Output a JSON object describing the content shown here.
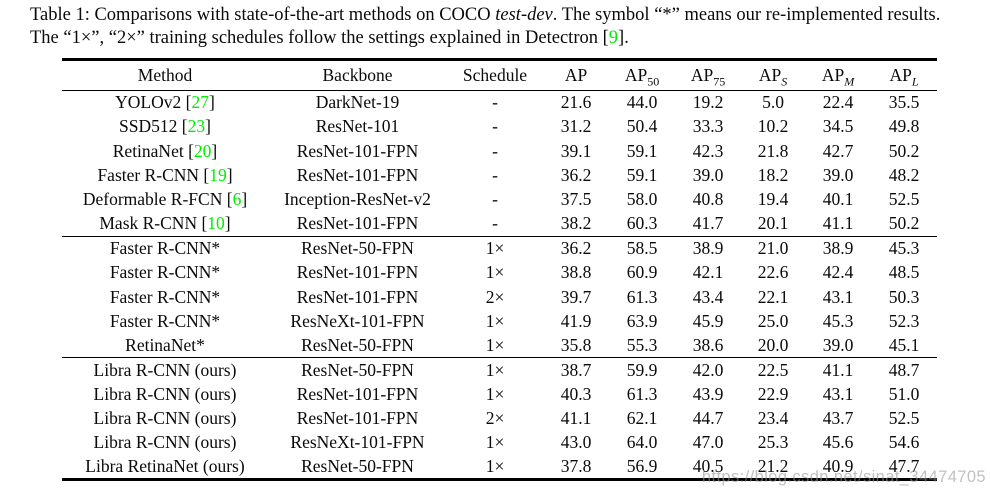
{
  "caption": {
    "line1_before_italic": "Table 1: Comparisons with state-of-the-art methods on COCO ",
    "line1_italic": "test-dev",
    "line1_after_italic": ". The symbol “*” means our re-implemented results.",
    "line2_before_ref": "The “1×”, “2×” training schedules follow the settings explained in Detectron [",
    "line2_ref": "9",
    "line2_after_ref": "]."
  },
  "table": {
    "headers": [
      {
        "text": "Method"
      },
      {
        "text": "Backbone"
      },
      {
        "text": "Schedule"
      },
      {
        "text": "AP"
      },
      {
        "text": "AP",
        "sub": "50"
      },
      {
        "text": "AP",
        "sub": "75"
      },
      {
        "text": "AP",
        "sub": "S",
        "sub_italic": true
      },
      {
        "text": "AP",
        "sub": "M",
        "sub_italic": true
      },
      {
        "text": "AP",
        "sub": "L",
        "sub_italic": true
      }
    ],
    "groups": [
      {
        "rows": [
          {
            "method": "YOLOv2",
            "ref": "27",
            "backbone": "DarkNet-19",
            "schedule": "-",
            "values": [
              "21.6",
              "44.0",
              "19.2",
              "5.0",
              "22.4",
              "35.5"
            ]
          },
          {
            "method": "SSD512",
            "ref": "23",
            "backbone": "ResNet-101",
            "schedule": "-",
            "values": [
              "31.2",
              "50.4",
              "33.3",
              "10.2",
              "34.5",
              "49.8"
            ]
          },
          {
            "method": "RetinaNet",
            "ref": "20",
            "backbone": "ResNet-101-FPN",
            "schedule": "-",
            "values": [
              "39.1",
              "59.1",
              "42.3",
              "21.8",
              "42.7",
              "50.2"
            ]
          },
          {
            "method": "Faster R-CNN",
            "ref": "19",
            "backbone": "ResNet-101-FPN",
            "schedule": "-",
            "values": [
              "36.2",
              "59.1",
              "39.0",
              "18.2",
              "39.0",
              "48.2"
            ]
          },
          {
            "method": "Deformable R-FCN",
            "ref": "6",
            "backbone": "Inception-ResNet-v2",
            "schedule": "-",
            "values": [
              "37.5",
              "58.0",
              "40.8",
              "19.4",
              "40.1",
              "52.5"
            ]
          },
          {
            "method": "Mask R-CNN",
            "ref": "10",
            "backbone": "ResNet-101-FPN",
            "schedule": "-",
            "values": [
              "38.2",
              "60.3",
              "41.7",
              "20.1",
              "41.1",
              "50.2"
            ]
          }
        ]
      },
      {
        "rows": [
          {
            "method": "Faster R-CNN*",
            "backbone": "ResNet-50-FPN",
            "schedule": "1×",
            "values": [
              "36.2",
              "58.5",
              "38.9",
              "21.0",
              "38.9",
              "45.3"
            ]
          },
          {
            "method": "Faster R-CNN*",
            "backbone": "ResNet-101-FPN",
            "schedule": "1×",
            "values": [
              "38.8",
              "60.9",
              "42.1",
              "22.6",
              "42.4",
              "48.5"
            ]
          },
          {
            "method": "Faster R-CNN*",
            "backbone": "ResNet-101-FPN",
            "schedule": "2×",
            "values": [
              "39.7",
              "61.3",
              "43.4",
              "22.1",
              "43.1",
              "50.3"
            ]
          },
          {
            "method": "Faster R-CNN*",
            "backbone": "ResNeXt-101-FPN",
            "schedule": "1×",
            "values": [
              "41.9",
              "63.9",
              "45.9",
              "25.0",
              "45.3",
              "52.3"
            ]
          },
          {
            "method": "RetinaNet*",
            "backbone": "ResNet-50-FPN",
            "schedule": "1×",
            "values": [
              "35.8",
              "55.3",
              "38.6",
              "20.0",
              "39.0",
              "45.1"
            ]
          }
        ]
      },
      {
        "rows": [
          {
            "method": "Libra R-CNN (ours)",
            "backbone": "ResNet-50-FPN",
            "schedule": "1×",
            "values": [
              "38.7",
              "59.9",
              "42.0",
              "22.5",
              "41.1",
              "48.7"
            ]
          },
          {
            "method": "Libra R-CNN (ours)",
            "backbone": "ResNet-101-FPN",
            "schedule": "1×",
            "values": [
              "40.3",
              "61.3",
              "43.9",
              "22.9",
              "43.1",
              "51.0"
            ]
          },
          {
            "method": "Libra R-CNN (ours)",
            "backbone": "ResNet-101-FPN",
            "schedule": "2×",
            "values": [
              "41.1",
              "62.1",
              "44.7",
              "23.4",
              "43.7",
              "52.5"
            ]
          },
          {
            "method": "Libra R-CNN (ours)",
            "backbone": "ResNeXt-101-FPN",
            "schedule": "1×",
            "values": [
              "43.0",
              "64.0",
              "47.0",
              "25.3",
              "45.6",
              "54.6"
            ]
          },
          {
            "method": "Libra RetinaNet (ours)",
            "backbone": "ResNet-50-FPN",
            "schedule": "1×",
            "values": [
              "37.8",
              "56.9",
              "40.5",
              "21.2",
              "40.9",
              "47.7"
            ]
          }
        ]
      }
    ]
  },
  "watermark": {
    "text": "https://blog.csdn.net/sinat_34474705"
  },
  "colors": {
    "citation_green": "#00ee00",
    "watermark_gray": "rgba(150,150,150,0.6)",
    "text_black": "#0a0a0a",
    "background": "#ffffff"
  }
}
